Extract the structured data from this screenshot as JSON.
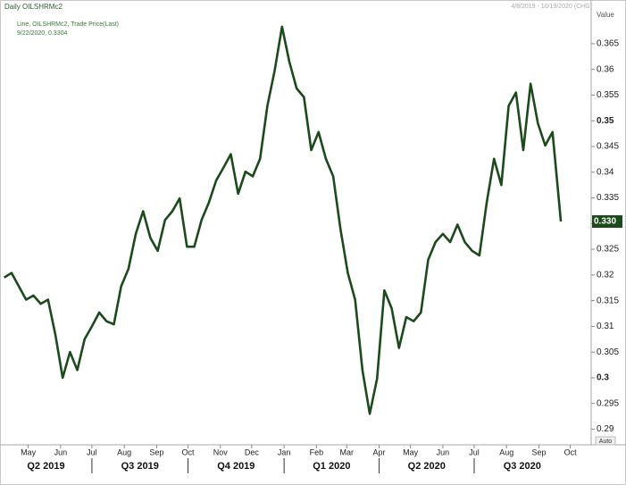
{
  "chart_data": {
    "type": "line",
    "title": "Daily OILSHRMc2",
    "range_label": "4/8/2019 - 10/19/2020 (CHG)",
    "ylabel": "Value",
    "info_label": "9/22/2020, 0.3304",
    "last_value_label": "0.330",
    "auto_button": "Auto",
    "x": [
      "2019-04-08",
      "2019-04-15",
      "2019-04-22",
      "2019-04-29",
      "2019-05-06",
      "2019-05-13",
      "2019-05-20",
      "2019-05-27",
      "2019-06-03",
      "2019-06-10",
      "2019-06-17",
      "2019-06-24",
      "2019-07-01",
      "2019-07-08",
      "2019-07-15",
      "2019-07-22",
      "2019-07-29",
      "2019-08-05",
      "2019-08-12",
      "2019-08-19",
      "2019-08-26",
      "2019-09-02",
      "2019-09-09",
      "2019-09-16",
      "2019-09-23",
      "2019-09-30",
      "2019-10-07",
      "2019-10-14",
      "2019-10-21",
      "2019-10-28",
      "2019-11-04",
      "2019-11-11",
      "2019-11-18",
      "2019-11-25",
      "2019-12-02",
      "2019-12-09",
      "2019-12-16",
      "2019-12-23",
      "2019-12-30",
      "2020-01-06",
      "2020-01-13",
      "2020-01-20",
      "2020-01-27",
      "2020-02-03",
      "2020-02-10",
      "2020-02-17",
      "2020-02-24",
      "2020-03-02",
      "2020-03-09",
      "2020-03-16",
      "2020-03-23",
      "2020-03-30",
      "2020-04-06",
      "2020-04-13",
      "2020-04-20",
      "2020-04-27",
      "2020-05-04",
      "2020-05-11",
      "2020-05-18",
      "2020-05-25",
      "2020-06-01",
      "2020-06-08",
      "2020-06-15",
      "2020-06-22",
      "2020-06-29",
      "2020-07-06",
      "2020-07-13",
      "2020-07-20",
      "2020-07-27",
      "2020-08-03",
      "2020-08-10",
      "2020-08-17",
      "2020-08-24",
      "2020-08-31",
      "2020-09-07",
      "2020-09-14",
      "2020-09-22"
    ],
    "series": [
      {
        "name": "Line, OILSHRMc2, Trade Price(Last)",
        "color": "#1b4a1b",
        "values": [
          0.3195,
          0.3204,
          0.3178,
          0.3152,
          0.316,
          0.3144,
          0.3152,
          0.3084,
          0.3,
          0.305,
          0.3015,
          0.3075,
          0.31,
          0.3127,
          0.311,
          0.3104,
          0.3178,
          0.3212,
          0.328,
          0.3324,
          0.3272,
          0.3247,
          0.3307,
          0.3324,
          0.3349,
          0.3255,
          0.3255,
          0.3307,
          0.3341,
          0.3384,
          0.3409,
          0.3435,
          0.3358,
          0.3401,
          0.3392,
          0.3426,
          0.3529,
          0.3598,
          0.3683,
          0.3615,
          0.3563,
          0.3546,
          0.3443,
          0.3478,
          0.3426,
          0.3392,
          0.3289,
          0.3204,
          0.3152,
          0.3015,
          0.293,
          0.2998,
          0.317,
          0.3135,
          0.3058,
          0.3118,
          0.311,
          0.3127,
          0.323,
          0.3264,
          0.328,
          0.3264,
          0.3298,
          0.3264,
          0.3247,
          0.3238,
          0.3341,
          0.3426,
          0.3375,
          0.3529,
          0.3555,
          0.3443,
          0.3572,
          0.3495,
          0.3452,
          0.3478,
          0.3304
        ]
      }
    ],
    "xlim": [
      "2019-04-04",
      "2020-10-21"
    ],
    "xticks": [
      {
        "value": "2019-05-01",
        "label": "May"
      },
      {
        "value": "2019-06-01",
        "label": "Jun"
      },
      {
        "value": "2019-07-01",
        "label": "Jul"
      },
      {
        "value": "2019-08-01",
        "label": "Aug"
      },
      {
        "value": "2019-09-01",
        "label": "Sep"
      },
      {
        "value": "2019-10-01",
        "label": "Oct"
      },
      {
        "value": "2019-11-01",
        "label": "Nov"
      },
      {
        "value": "2019-12-01",
        "label": "Dec"
      },
      {
        "value": "2020-01-01",
        "label": "Jan"
      },
      {
        "value": "2020-02-01",
        "label": "Feb"
      },
      {
        "value": "2020-03-01",
        "label": "Mar"
      },
      {
        "value": "2020-04-01",
        "label": "Apr"
      },
      {
        "value": "2020-05-01",
        "label": "May"
      },
      {
        "value": "2020-06-01",
        "label": "Jun"
      },
      {
        "value": "2020-07-01",
        "label": "Jul"
      },
      {
        "value": "2020-08-01",
        "label": "Aug"
      },
      {
        "value": "2020-09-01",
        "label": "Sep"
      },
      {
        "value": "2020-10-01",
        "label": "Oct"
      }
    ],
    "quarters": [
      {
        "value": "2019-04-01",
        "label": "Q2 2019"
      },
      {
        "value": "2019-07-01",
        "label": "Q3 2019"
      },
      {
        "value": "2019-10-01",
        "label": "Q4 2019"
      },
      {
        "value": "2020-01-01",
        "label": "Q1 2020"
      },
      {
        "value": "2020-04-01",
        "label": "Q2 2020"
      },
      {
        "value": "2020-07-01",
        "label": "Q3 2020"
      }
    ],
    "ylim": [
      0.288,
      0.3735
    ],
    "yticks": [
      0.29,
      0.295,
      0.3,
      0.305,
      0.31,
      0.315,
      0.32,
      0.325,
      0.33,
      0.335,
      0.34,
      0.345,
      0.35,
      0.355,
      0.36,
      0.365
    ]
  }
}
